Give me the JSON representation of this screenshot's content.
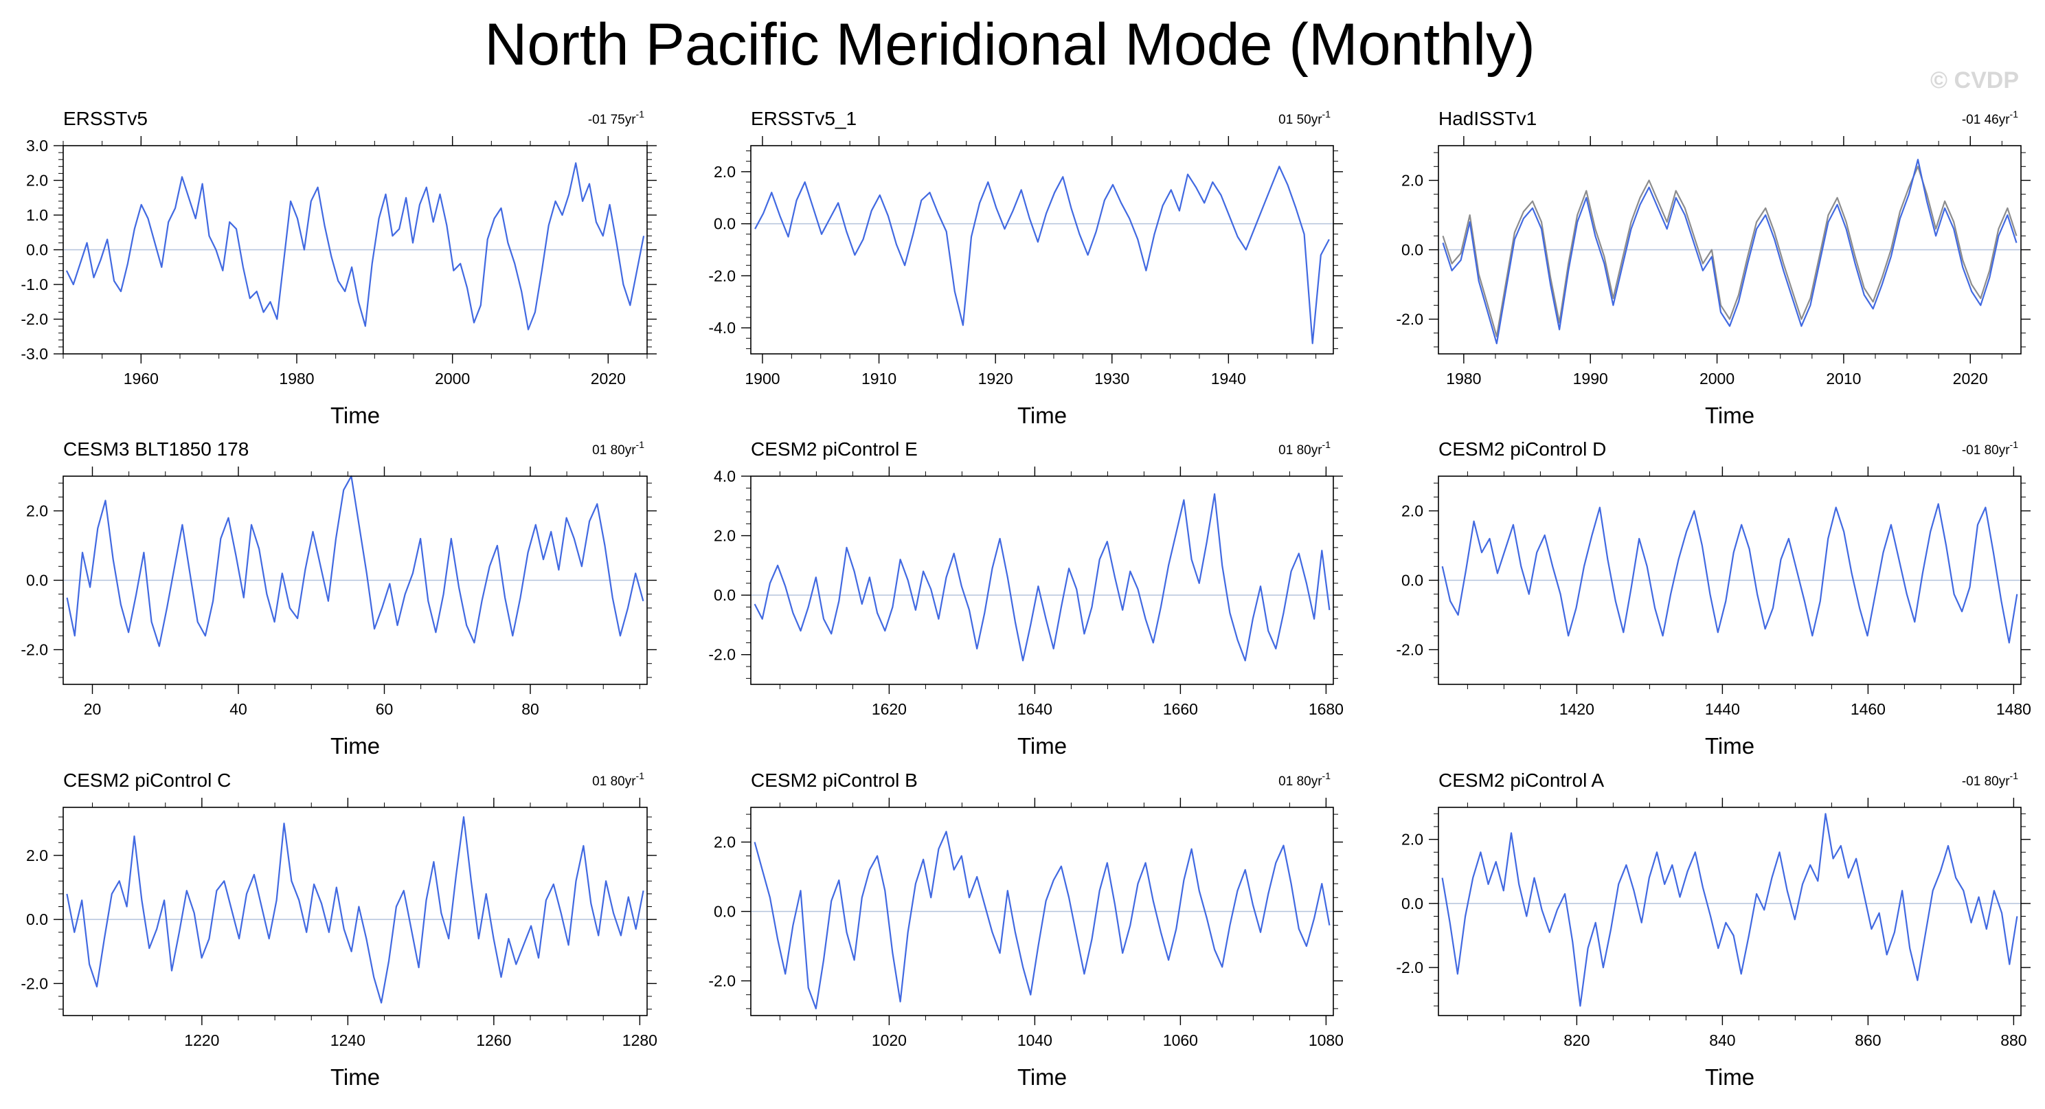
{
  "figure": {
    "title": "North Pacific Meridional Mode (Monthly)",
    "copyright": "© CVDP",
    "colors": {
      "line": "#4169e1",
      "secondary_line": "#8c8c8c",
      "zero_line": "#b4c3dc",
      "frame": "#000000"
    }
  },
  "chart_data": [
    {
      "type": "line",
      "title": "ERSSTv5",
      "trend": "-01 75yr",
      "trend_sup": "-1",
      "xlabel": "Time",
      "xlim": [
        1950,
        2025
      ],
      "ylim": [
        -3.0,
        3.0
      ],
      "xticks": [
        1960,
        1980,
        2000,
        2020
      ],
      "xtick_labels": [
        "1960",
        "1980",
        "2000",
        "2020"
      ],
      "yticks": [
        -3,
        -2,
        -1,
        0,
        1,
        2,
        3
      ],
      "ytick_labels": [
        "-3.0",
        "-2.0",
        "-1.0",
        "0.0",
        "1.0",
        "2.0",
        "3.0"
      ],
      "series": [
        {
          "values": [
            -0.6,
            -1.0,
            -0.4,
            0.2,
            -0.8,
            -0.3,
            0.3,
            -0.9,
            -1.2,
            -0.4,
            0.6,
            1.3,
            0.9,
            0.2,
            -0.5,
            0.8,
            1.2,
            2.1,
            1.5,
            0.9,
            1.9,
            0.4,
            0.0,
            -0.6,
            0.8,
            0.6,
            -0.5,
            -1.4,
            -1.2,
            -1.8,
            -1.5,
            -2.0,
            -0.3,
            1.4,
            0.9,
            0.0,
            1.4,
            1.8,
            0.7,
            -0.2,
            -0.9,
            -1.2,
            -0.5,
            -1.5,
            -2.2,
            -0.4,
            0.9,
            1.6,
            0.4,
            0.6,
            1.5,
            0.2,
            1.3,
            1.8,
            0.8,
            1.6,
            0.7,
            -0.6,
            -0.4,
            -1.1,
            -2.1,
            -1.6,
            0.3,
            0.9,
            1.2,
            0.2,
            -0.4,
            -1.2,
            -2.3,
            -1.8,
            -0.6,
            0.7,
            1.4,
            1.0,
            1.6,
            2.5,
            1.4,
            1.9,
            0.8,
            0.4,
            1.3,
            0.2,
            -1.0,
            -1.6,
            -0.6,
            0.4
          ]
        }
      ]
    },
    {
      "type": "line",
      "title": "ERSSTv5_1",
      "trend": "01 50yr",
      "trend_sup": "-1",
      "xlabel": "Time",
      "xlim": [
        1899,
        1949
      ],
      "ylim": [
        -5.0,
        3.0
      ],
      "xticks": [
        1900,
        1910,
        1920,
        1930,
        1940
      ],
      "xtick_labels": [
        "1900",
        "1910",
        "1920",
        "1930",
        "1940"
      ],
      "yticks": [
        -4,
        -2,
        0,
        2
      ],
      "ytick_labels": [
        "-4.0",
        "-2.0",
        "0.0",
        "2.0"
      ],
      "series": [
        {
          "values": [
            -0.2,
            0.4,
            1.2,
            0.3,
            -0.5,
            0.9,
            1.6,
            0.6,
            -0.4,
            0.2,
            0.8,
            -0.3,
            -1.2,
            -0.6,
            0.5,
            1.1,
            0.3,
            -0.8,
            -1.6,
            -0.4,
            0.9,
            1.2,
            0.4,
            -0.3,
            -2.6,
            -3.9,
            -0.5,
            0.8,
            1.6,
            0.6,
            -0.2,
            0.5,
            1.3,
            0.2,
            -0.7,
            0.4,
            1.2,
            1.8,
            0.6,
            -0.4,
            -1.2,
            -0.3,
            0.9,
            1.5,
            0.8,
            0.2,
            -0.6,
            -1.8,
            -0.4,
            0.7,
            1.3,
            0.5,
            1.9,
            1.4,
            0.8,
            1.6,
            1.1,
            0.3,
            -0.5,
            -1.0,
            -0.2,
            0.6,
            1.4,
            2.2,
            1.5,
            0.6,
            -0.4,
            -4.6,
            -1.2,
            -0.6
          ]
        }
      ]
    },
    {
      "type": "line",
      "title": "HadISSTv1",
      "trend": "-01 46yr",
      "trend_sup": "-1",
      "xlabel": "Time",
      "xlim": [
        1978,
        2024
      ],
      "ylim": [
        -3.0,
        3.0
      ],
      "xticks": [
        1980,
        1990,
        2000,
        2010,
        2020
      ],
      "xtick_labels": [
        "1980",
        "1990",
        "2000",
        "2010",
        "2020"
      ],
      "yticks": [
        -2,
        0,
        2
      ],
      "ytick_labels": [
        "-2.0",
        "0.0",
        "2.0"
      ],
      "series": [
        {
          "values": [
            0.2,
            -0.6,
            -0.3,
            0.8,
            -0.9,
            -1.8,
            -2.7,
            -1.2,
            0.3,
            0.9,
            1.2,
            0.6,
            -1.0,
            -2.3,
            -0.6,
            0.8,
            1.5,
            0.4,
            -0.4,
            -1.6,
            -0.5,
            0.6,
            1.3,
            1.8,
            1.2,
            0.6,
            1.5,
            1.0,
            0.2,
            -0.6,
            -0.2,
            -1.8,
            -2.2,
            -1.5,
            -0.4,
            0.6,
            1.0,
            0.3,
            -0.6,
            -1.4,
            -2.2,
            -1.6,
            -0.4,
            0.8,
            1.3,
            0.6,
            -0.4,
            -1.3,
            -1.7,
            -1.0,
            -0.2,
            0.9,
            1.6,
            2.6,
            1.4,
            0.4,
            1.2,
            0.6,
            -0.5,
            -1.2,
            -1.6,
            -0.8,
            0.4,
            1.0,
            0.2
          ]
        },
        {
          "values": [
            0.4,
            -0.4,
            -0.1,
            1.0,
            -0.7,
            -1.6,
            -2.5,
            -1.0,
            0.5,
            1.1,
            1.4,
            0.8,
            -0.8,
            -2.1,
            -0.4,
            1.0,
            1.7,
            0.6,
            -0.2,
            -1.4,
            -0.3,
            0.8,
            1.5,
            2.0,
            1.4,
            0.8,
            1.7,
            1.2,
            0.4,
            -0.4,
            0.0,
            -1.6,
            -2.0,
            -1.3,
            -0.2,
            0.8,
            1.2,
            0.5,
            -0.4,
            -1.2,
            -2.0,
            -1.4,
            -0.2,
            1.0,
            1.5,
            0.8,
            -0.2,
            -1.1,
            -1.5,
            -0.8,
            0.0,
            1.1,
            1.8,
            2.4,
            1.6,
            0.6,
            1.4,
            0.8,
            -0.3,
            -1.0,
            -1.4,
            -0.6,
            0.6,
            1.2,
            0.4
          ]
        }
      ]
    },
    {
      "type": "line",
      "title": "CESM3 BLT1850 178",
      "trend": "01 80yr",
      "trend_sup": "-1",
      "xlabel": "Time",
      "xlim": [
        16,
        96
      ],
      "ylim": [
        -3.0,
        3.0
      ],
      "xticks": [
        20,
        40,
        60,
        80
      ],
      "xtick_labels": [
        "20",
        "40",
        "60",
        "80"
      ],
      "yticks": [
        -2,
        0,
        2
      ],
      "ytick_labels": [
        "-2.0",
        "0.0",
        "2.0"
      ],
      "series": [
        {
          "values": [
            -0.5,
            -1.6,
            0.8,
            -0.2,
            1.5,
            2.3,
            0.6,
            -0.7,
            -1.5,
            -0.4,
            0.8,
            -1.2,
            -1.9,
            -0.8,
            0.4,
            1.6,
            0.2,
            -1.2,
            -1.6,
            -0.6,
            1.2,
            1.8,
            0.7,
            -0.5,
            1.6,
            0.9,
            -0.4,
            -1.2,
            0.2,
            -0.8,
            -1.1,
            0.3,
            1.4,
            0.4,
            -0.6,
            1.2,
            2.6,
            3.0,
            1.6,
            0.2,
            -1.4,
            -0.8,
            -0.1,
            -1.3,
            -0.4,
            0.2,
            1.2,
            -0.6,
            -1.5,
            -0.4,
            1.2,
            -0.2,
            -1.3,
            -1.8,
            -0.6,
            0.4,
            1.0,
            -0.5,
            -1.6,
            -0.5,
            0.8,
            1.6,
            0.6,
            1.4,
            0.3,
            1.8,
            1.2,
            0.4,
            1.7,
            2.2,
            1.0,
            -0.5,
            -1.6,
            -0.8,
            0.2,
            -0.6
          ]
        }
      ]
    },
    {
      "type": "line",
      "title": "CESM2 piControl E",
      "trend": "01 80yr",
      "trend_sup": "-1",
      "xlabel": "Time",
      "xlim": [
        1601,
        1681
      ],
      "ylim": [
        -3.0,
        4.0
      ],
      "xticks": [
        1620,
        1640,
        1660,
        1680
      ],
      "xtick_labels": [
        "1620",
        "1640",
        "1660",
        "1680"
      ],
      "yticks": [
        -2,
        0,
        2,
        4
      ],
      "ytick_labels": [
        "-2.0",
        "0.0",
        "2.0",
        "4.0"
      ],
      "series": [
        {
          "values": [
            -0.3,
            -0.8,
            0.4,
            1.0,
            0.3,
            -0.6,
            -1.2,
            -0.4,
            0.6,
            -0.8,
            -1.3,
            -0.2,
            1.6,
            0.8,
            -0.3,
            0.6,
            -0.6,
            -1.2,
            -0.4,
            1.2,
            0.5,
            -0.5,
            0.8,
            0.2,
            -0.8,
            0.6,
            1.4,
            0.3,
            -0.5,
            -1.8,
            -0.6,
            0.9,
            1.9,
            0.6,
            -0.9,
            -2.2,
            -1.0,
            0.3,
            -0.8,
            -1.8,
            -0.4,
            0.9,
            0.2,
            -1.3,
            -0.4,
            1.2,
            1.8,
            0.6,
            -0.5,
            0.8,
            0.2,
            -0.8,
            -1.6,
            -0.4,
            1.0,
            2.1,
            3.2,
            1.2,
            0.4,
            1.8,
            3.4,
            1.0,
            -0.6,
            -1.5,
            -2.2,
            -0.8,
            0.3,
            -1.2,
            -1.8,
            -0.6,
            0.8,
            1.4,
            0.4,
            -0.8,
            1.5,
            -0.5
          ]
        }
      ]
    },
    {
      "type": "line",
      "title": "CESM2 piControl D",
      "trend": "-01 80yr",
      "trend_sup": "-1",
      "xlabel": "Time",
      "xlim": [
        1401,
        1481
      ],
      "ylim": [
        -3.0,
        3.0
      ],
      "xticks": [
        1420,
        1440,
        1460,
        1480
      ],
      "xtick_labels": [
        "1420",
        "1440",
        "1460",
        "1480"
      ],
      "yticks": [
        -2,
        0,
        2
      ],
      "ytick_labels": [
        "-2.0",
        "0.0",
        "2.0"
      ],
      "series": [
        {
          "values": [
            0.4,
            -0.6,
            -1.0,
            0.3,
            1.7,
            0.8,
            1.2,
            0.2,
            0.9,
            1.6,
            0.4,
            -0.4,
            0.8,
            1.3,
            0.4,
            -0.4,
            -1.6,
            -0.8,
            0.4,
            1.3,
            2.1,
            0.6,
            -0.6,
            -1.5,
            -0.2,
            1.2,
            0.4,
            -0.8,
            -1.6,
            -0.4,
            0.6,
            1.4,
            2.0,
            1.0,
            -0.4,
            -1.5,
            -0.6,
            0.8,
            1.6,
            0.9,
            -0.4,
            -1.4,
            -0.8,
            0.6,
            1.2,
            0.3,
            -0.6,
            -1.6,
            -0.6,
            1.2,
            2.1,
            1.4,
            0.2,
            -0.8,
            -1.6,
            -0.4,
            0.8,
            1.6,
            0.6,
            -0.4,
            -1.2,
            0.2,
            1.4,
            2.2,
            1.0,
            -0.4,
            -0.9,
            -0.2,
            1.6,
            2.1,
            0.8,
            -0.6,
            -1.8,
            -0.4
          ]
        }
      ]
    },
    {
      "type": "line",
      "title": "CESM2 piControl C",
      "trend": "01 80yr",
      "trend_sup": "-1",
      "xlabel": "Time",
      "xlim": [
        1201,
        1281
      ],
      "ylim": [
        -3.0,
        3.5
      ],
      "xticks": [
        1220,
        1240,
        1260,
        1280
      ],
      "xtick_labels": [
        "1220",
        "1240",
        "1260",
        "1280"
      ],
      "yticks": [
        -2,
        0,
        2
      ],
      "ytick_labels": [
        "-2.0",
        "0.0",
        "2.0"
      ],
      "series": [
        {
          "values": [
            0.8,
            -0.4,
            0.6,
            -1.4,
            -2.1,
            -0.6,
            0.8,
            1.2,
            0.4,
            2.6,
            0.6,
            -0.9,
            -0.3,
            0.6,
            -1.6,
            -0.4,
            0.9,
            0.2,
            -1.2,
            -0.6,
            0.9,
            1.2,
            0.3,
            -0.6,
            0.8,
            1.4,
            0.4,
            -0.6,
            0.6,
            3.0,
            1.2,
            0.6,
            -0.4,
            1.1,
            0.5,
            -0.4,
            1.0,
            -0.3,
            -1.0,
            0.4,
            -0.6,
            -1.8,
            -2.6,
            -1.3,
            0.4,
            0.9,
            -0.3,
            -1.5,
            0.6,
            1.8,
            0.2,
            -0.6,
            1.4,
            3.2,
            1.2,
            -0.6,
            0.8,
            -0.6,
            -1.8,
            -0.6,
            -1.4,
            -0.8,
            -0.2,
            -1.2,
            0.6,
            1.1,
            0.2,
            -0.8,
            1.2,
            2.3,
            0.5,
            -0.5,
            1.2,
            0.2,
            -0.5,
            0.7,
            -0.3,
            0.9
          ]
        }
      ]
    },
    {
      "type": "line",
      "title": "CESM2 piControl B",
      "trend": "01 80yr",
      "trend_sup": "-1",
      "xlabel": "Time",
      "xlim": [
        1001,
        1081
      ],
      "ylim": [
        -3.0,
        3.0
      ],
      "xticks": [
        1020,
        1040,
        1060,
        1080
      ],
      "xtick_labels": [
        "1020",
        "1040",
        "1060",
        "1080"
      ],
      "yticks": [
        -2,
        0,
        2
      ],
      "ytick_labels": [
        "-2.0",
        "0.0",
        "2.0"
      ],
      "series": [
        {
          "values": [
            2.0,
            1.2,
            0.4,
            -0.8,
            -1.8,
            -0.4,
            0.6,
            -2.2,
            -2.8,
            -1.4,
            0.3,
            0.9,
            -0.6,
            -1.4,
            0.4,
            1.2,
            1.6,
            0.6,
            -1.2,
            -2.6,
            -0.6,
            0.8,
            1.5,
            0.4,
            1.8,
            2.3,
            1.2,
            1.6,
            0.4,
            1.0,
            0.2,
            -0.6,
            -1.2,
            0.6,
            -0.6,
            -1.6,
            -2.4,
            -1.0,
            0.3,
            0.9,
            1.3,
            0.4,
            -0.7,
            -1.8,
            -0.8,
            0.6,
            1.4,
            0.2,
            -1.2,
            -0.4,
            0.8,
            1.4,
            0.3,
            -0.6,
            -1.4,
            -0.5,
            0.9,
            1.8,
            0.6,
            -0.2,
            -1.1,
            -1.6,
            -0.4,
            0.6,
            1.2,
            0.2,
            -0.6,
            0.5,
            1.4,
            1.9,
            0.8,
            -0.5,
            -1.0,
            -0.2,
            0.8,
            -0.4
          ]
        }
      ]
    },
    {
      "type": "line",
      "title": "CESM2 piControl A",
      "trend": "-01 80yr",
      "trend_sup": "-1",
      "xlabel": "Time",
      "xlim": [
        801,
        881
      ],
      "ylim": [
        -3.5,
        3.0
      ],
      "xticks": [
        820,
        840,
        860,
        880
      ],
      "xtick_labels": [
        "820",
        "840",
        "860",
        "880"
      ],
      "yticks": [
        -2,
        0,
        2
      ],
      "ytick_labels": [
        "-2.0",
        "0.0",
        "2.0"
      ],
      "series": [
        {
          "values": [
            0.8,
            -0.6,
            -2.2,
            -0.4,
            0.8,
            1.6,
            0.6,
            1.3,
            0.4,
            2.2,
            0.6,
            -0.4,
            0.8,
            -0.2,
            -0.9,
            -0.2,
            0.3,
            -1.2,
            -3.2,
            -1.4,
            -0.6,
            -2.0,
            -0.8,
            0.6,
            1.2,
            0.4,
            -0.6,
            0.8,
            1.6,
            0.6,
            1.2,
            0.2,
            1.0,
            1.6,
            0.5,
            -0.4,
            -1.4,
            -0.6,
            -1.0,
            -2.2,
            -1.0,
            0.3,
            -0.2,
            0.8,
            1.6,
            0.4,
            -0.5,
            0.6,
            1.2,
            0.7,
            2.8,
            1.4,
            1.8,
            0.8,
            1.4,
            0.3,
            -0.8,
            -0.3,
            -1.6,
            -0.9,
            0.4,
            -1.4,
            -2.4,
            -1.0,
            0.4,
            1.0,
            1.8,
            0.8,
            0.4,
            -0.6,
            0.2,
            -0.8,
            0.4,
            -0.3,
            -1.9,
            -0.4
          ]
        }
      ]
    }
  ]
}
